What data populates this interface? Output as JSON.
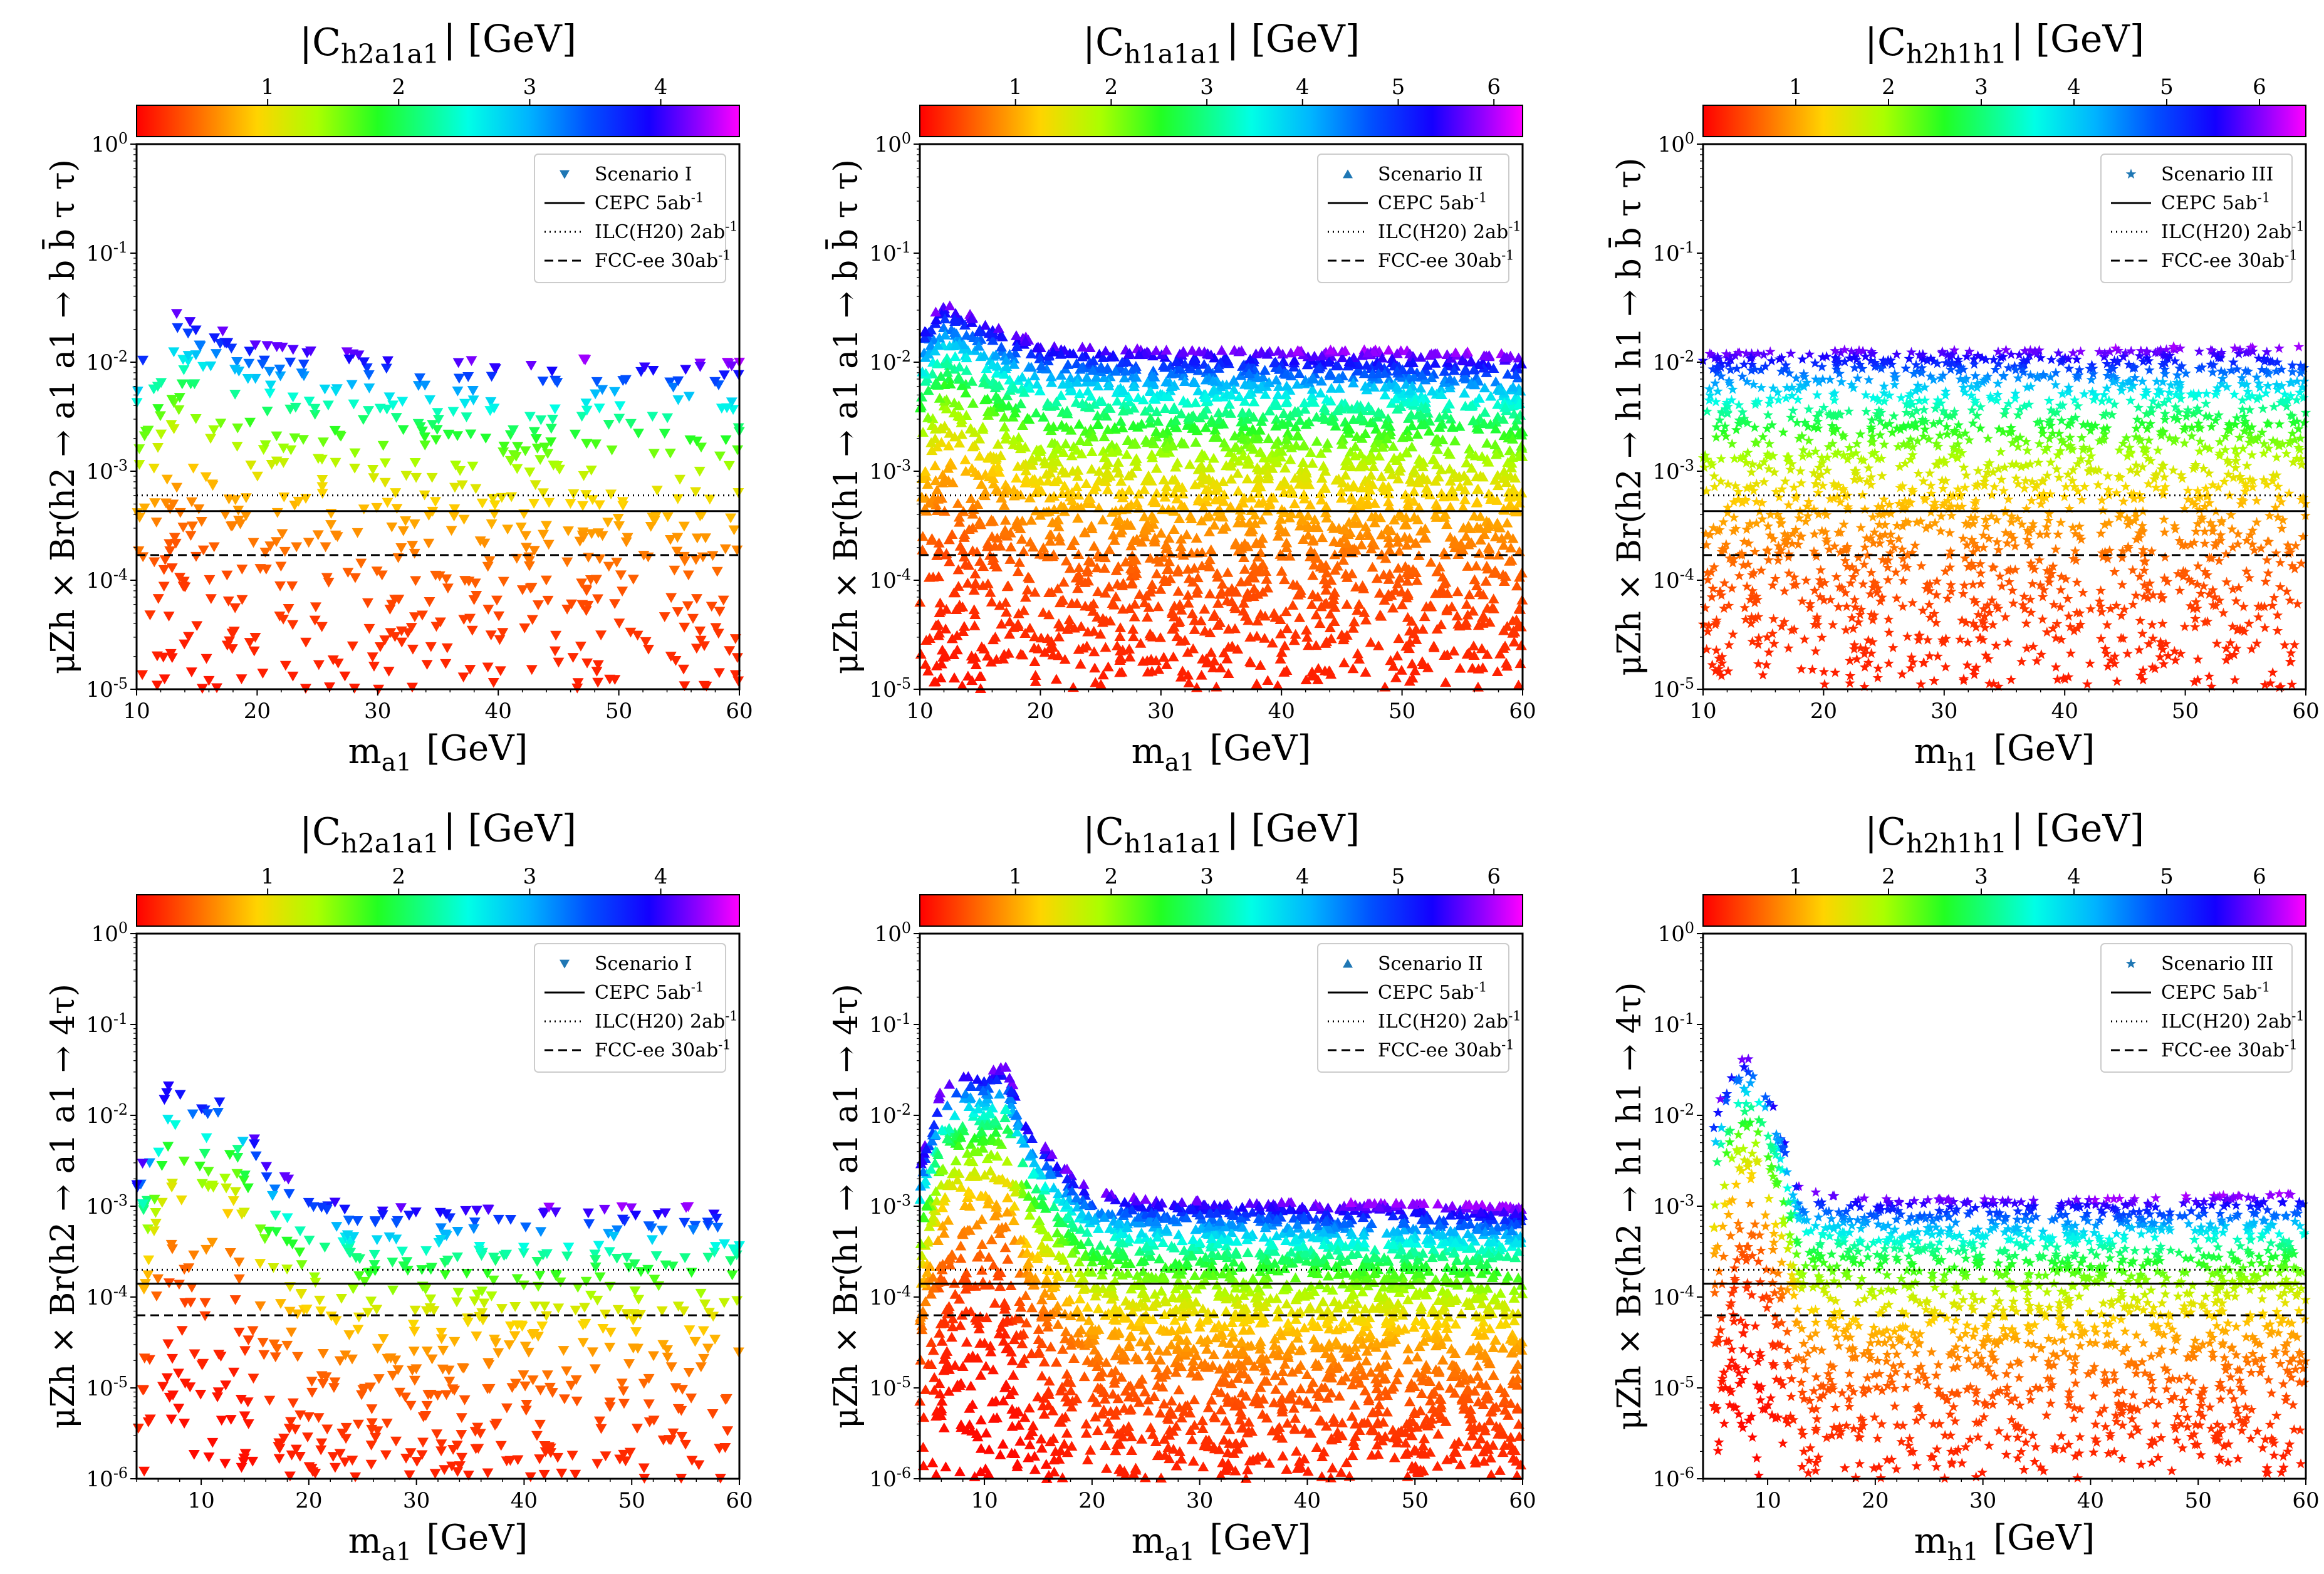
{
  "chart_data": [
    {
      "type": "scatter",
      "title": "",
      "colorbar_label": "|C_h2a1a1| [GeV]",
      "colorbar": {
        "range": [
          0,
          4.6
        ],
        "ticks": [
          1,
          2,
          3,
          4
        ]
      },
      "xlabel": "m_a1 [GeV]",
      "ylabel": "μZh × Br(h2 → a1 a1 → b b̄ τ τ)",
      "xlim": [
        10,
        60
      ],
      "ylim": [
        1e-05,
        1
      ],
      "yscale": "log",
      "xticks": [
        10,
        20,
        30,
        40,
        50,
        60
      ],
      "yticks": [
        {
          "v": 1,
          "l": "10^0"
        },
        {
          "v": 0.1,
          "l": "10^-1"
        },
        {
          "v": 0.01,
          "l": "10^-2"
        },
        {
          "v": 0.001,
          "l": "10^-3"
        },
        {
          "v": 0.0001,
          "l": "10^-4"
        },
        {
          "v": 1e-05,
          "l": "10^-5"
        }
      ],
      "legend": {
        "position": "top-right",
        "series": "Scenario I",
        "marker": "triangle-down",
        "lines": [
          {
            "label": "CEPC 5ab^-1",
            "style": "solid"
          },
          {
            "label": "ILC(H20) 2ab^-1",
            "style": "dotted"
          },
          {
            "label": "FCC-ee 30ab^-1",
            "style": "dashed"
          }
        ]
      },
      "reference_lines": {
        "CEPC": 0.00043,
        "ILC": 0.0006,
        "FCC": 0.00017
      },
      "points": {
        "count": 650,
        "x_range": [
          10,
          60
        ],
        "upper_envelope": [
          [
            10,
            0.012
          ],
          [
            13,
            0.03
          ],
          [
            20,
            0.015
          ],
          [
            30,
            0.012
          ],
          [
            40,
            0.01
          ],
          [
            50,
            0.011
          ],
          [
            60,
            0.01
          ]
        ],
        "lower_bound": 1e-05,
        "color_rule": "|C| ≈ sqrt(Br / upper_envelope) × 4.5"
      }
    },
    {
      "type": "scatter",
      "title": "",
      "colorbar_label": "|C_h1a1a1| [GeV]",
      "colorbar": {
        "range": [
          0,
          6.3
        ],
        "ticks": [
          1,
          2,
          3,
          4,
          5,
          6
        ]
      },
      "xlabel": "m_a1 [GeV]",
      "ylabel": "μZh × Br(h1 → a1 a1 → b b̄ τ τ)",
      "xlim": [
        10,
        60
      ],
      "ylim": [
        1e-05,
        1
      ],
      "yscale": "log",
      "xticks": [
        10,
        20,
        30,
        40,
        50,
        60
      ],
      "yticks": [
        {
          "v": 1,
          "l": "10^0"
        },
        {
          "v": 0.1,
          "l": "10^-1"
        },
        {
          "v": 0.01,
          "l": "10^-2"
        },
        {
          "v": 0.001,
          "l": "10^-3"
        },
        {
          "v": 0.0001,
          "l": "10^-4"
        },
        {
          "v": 1e-05,
          "l": "10^-5"
        }
      ],
      "legend": {
        "position": "top-right",
        "series": "Scenario II",
        "marker": "triangle-up",
        "lines": [
          {
            "label": "CEPC 5ab^-1",
            "style": "solid"
          },
          {
            "label": "ILC(H20) 2ab^-1",
            "style": "dotted"
          },
          {
            "label": "FCC-ee 30ab^-1",
            "style": "dashed"
          }
        ]
      },
      "reference_lines": {
        "CEPC": 0.00043,
        "ILC": 0.0006,
        "FCC": 0.00017
      },
      "points": {
        "count": 2600,
        "x_range": [
          10,
          60
        ],
        "upper_envelope": [
          [
            10,
            0.02
          ],
          [
            12,
            0.035
          ],
          [
            20,
            0.015
          ],
          [
            30,
            0.013
          ],
          [
            40,
            0.013
          ],
          [
            50,
            0.013
          ],
          [
            60,
            0.012
          ]
        ],
        "lower_bound": 1e-05,
        "color_rule": "|C| ≈ sqrt(Br / upper_envelope) × 6.0"
      }
    },
    {
      "type": "scatter",
      "title": "",
      "colorbar_label": "|C_h2h1h1| [GeV]",
      "colorbar": {
        "range": [
          0,
          6.5
        ],
        "ticks": [
          1,
          2,
          3,
          4,
          5,
          6
        ]
      },
      "xlabel": "m_h1 [GeV]",
      "ylabel": "μZh × Br(h2 → h1 h1 → b b̄ τ τ)",
      "xlim": [
        10,
        60
      ],
      "ylim": [
        1e-05,
        1
      ],
      "yscale": "log",
      "xticks": [
        10,
        20,
        30,
        40,
        50,
        60
      ],
      "yticks": [
        {
          "v": 1,
          "l": "10^0"
        },
        {
          "v": 0.1,
          "l": "10^-1"
        },
        {
          "v": 0.01,
          "l": "10^-2"
        },
        {
          "v": 0.001,
          "l": "10^-3"
        },
        {
          "v": 0.0001,
          "l": "10^-4"
        },
        {
          "v": 1e-05,
          "l": "10^-5"
        }
      ],
      "legend": {
        "position": "top-right",
        "series": "Scenario III",
        "marker": "star",
        "lines": [
          {
            "label": "CEPC 5ab^-1",
            "style": "solid"
          },
          {
            "label": "ILC(H20) 2ab^-1",
            "style": "dotted"
          },
          {
            "label": "FCC-ee 30ab^-1",
            "style": "dashed"
          }
        ]
      },
      "reference_lines": {
        "CEPC": 0.00043,
        "ILC": 0.0006,
        "FCC": 0.00017
      },
      "points": {
        "count": 1900,
        "x_range": [
          10,
          60
        ],
        "upper_envelope": [
          [
            10,
            0.012
          ],
          [
            20,
            0.013
          ],
          [
            30,
            0.013
          ],
          [
            40,
            0.013
          ],
          [
            50,
            0.014
          ],
          [
            60,
            0.014
          ]
        ],
        "lower_bound": 1e-05,
        "color_rule": "|C| ≈ sqrt(Br / upper_envelope) × 6.3"
      }
    },
    {
      "type": "scatter",
      "title": "",
      "colorbar_label": "|C_h2a1a1| [GeV]",
      "colorbar": {
        "range": [
          0,
          4.6
        ],
        "ticks": [
          1,
          2,
          3,
          4
        ]
      },
      "xlabel": "m_a1 [GeV]",
      "ylabel": "μZh × Br(h2 → a1 a1 → 4τ)",
      "xlim": [
        4,
        60
      ],
      "ylim": [
        1e-06,
        1
      ],
      "yscale": "log",
      "xticks": [
        10,
        20,
        30,
        40,
        50,
        60
      ],
      "yticks": [
        {
          "v": 1,
          "l": "10^0"
        },
        {
          "v": 0.1,
          "l": "10^-1"
        },
        {
          "v": 0.01,
          "l": "10^-2"
        },
        {
          "v": 0.001,
          "l": "10^-3"
        },
        {
          "v": 0.0001,
          "l": "10^-4"
        },
        {
          "v": 1e-05,
          "l": "10^-5"
        },
        {
          "v": 1e-06,
          "l": "10^-6"
        }
      ],
      "legend": {
        "position": "top-right",
        "series": "Scenario I",
        "marker": "triangle-down",
        "lines": [
          {
            "label": "CEPC 5ab^-1",
            "style": "solid"
          },
          {
            "label": "ILC(H20) 2ab^-1",
            "style": "dotted"
          },
          {
            "label": "FCC-ee 30ab^-1",
            "style": "dashed"
          }
        ]
      },
      "reference_lines": {
        "CEPC": 0.00014,
        "ILC": 0.0002,
        "FCC": 6.3e-05
      },
      "points": {
        "count": 650,
        "x_range": [
          4,
          60
        ],
        "upper_envelope": [
          [
            4,
            0.002
          ],
          [
            7,
            0.025
          ],
          [
            10,
            0.015
          ],
          [
            13,
            0.02
          ],
          [
            16,
            0.003
          ],
          [
            20,
            0.0015
          ],
          [
            25,
            0.001
          ],
          [
            40,
            0.001
          ],
          [
            50,
            0.001
          ],
          [
            60,
            0.001
          ]
        ],
        "lower_bound": 1e-06,
        "color_rule": "|C| ≈ sqrt(Br / upper_envelope) × 4.5"
      }
    },
    {
      "type": "scatter",
      "title": "",
      "colorbar_label": "|C_h1a1a1| [GeV]",
      "colorbar": {
        "range": [
          0,
          6.3
        ],
        "ticks": [
          1,
          2,
          3,
          4,
          5,
          6
        ]
      },
      "xlabel": "m_a1 [GeV]",
      "ylabel": "μZh × Br(h1 → a1 a1 → 4τ)",
      "xlim": [
        4,
        60
      ],
      "ylim": [
        1e-06,
        1
      ],
      "yscale": "log",
      "xticks": [
        10,
        20,
        30,
        40,
        50,
        60
      ],
      "yticks": [
        {
          "v": 1,
          "l": "10^0"
        },
        {
          "v": 0.1,
          "l": "10^-1"
        },
        {
          "v": 0.01,
          "l": "10^-2"
        },
        {
          "v": 0.001,
          "l": "10^-3"
        },
        {
          "v": 0.0001,
          "l": "10^-4"
        },
        {
          "v": 1e-05,
          "l": "10^-5"
        },
        {
          "v": 1e-06,
          "l": "10^-6"
        }
      ],
      "legend": {
        "position": "top-right",
        "series": "Scenario II",
        "marker": "triangle-up",
        "lines": [
          {
            "label": "CEPC 5ab^-1",
            "style": "solid"
          },
          {
            "label": "ILC(H20) 2ab^-1",
            "style": "dotted"
          },
          {
            "label": "FCC-ee 30ab^-1",
            "style": "dashed"
          }
        ]
      },
      "reference_lines": {
        "CEPC": 0.00014,
        "ILC": 0.0002,
        "FCC": 6.3e-05
      },
      "points": {
        "count": 2600,
        "x_range": [
          4,
          60
        ],
        "upper_envelope": [
          [
            4,
            0.003
          ],
          [
            6,
            0.02
          ],
          [
            8,
            0.03
          ],
          [
            10,
            0.03
          ],
          [
            12,
            0.035
          ],
          [
            14,
            0.008
          ],
          [
            17,
            0.003
          ],
          [
            20,
            0.0015
          ],
          [
            25,
            0.0012
          ],
          [
            40,
            0.0011
          ],
          [
            50,
            0.0011
          ],
          [
            60,
            0.001
          ]
        ],
        "lower_bound": 1e-06,
        "color_rule": "|C| ≈ sqrt(Br / upper_envelope) × 6.0"
      }
    },
    {
      "type": "scatter",
      "title": "",
      "colorbar_label": "|C_h2h1h1| [GeV]",
      "colorbar": {
        "range": [
          0,
          6.5
        ],
        "ticks": [
          1,
          2,
          3,
          4,
          5,
          6
        ]
      },
      "xlabel": "m_h1 [GeV]",
      "ylabel": "μZh × Br(h2 → h1 h1 → 4τ)",
      "xlim": [
        4,
        60
      ],
      "ylim": [
        1e-06,
        1
      ],
      "yscale": "log",
      "xticks": [
        10,
        20,
        30,
        40,
        50,
        60
      ],
      "yticks": [
        {
          "v": 1,
          "l": "10^0"
        },
        {
          "v": 0.1,
          "l": "10^-1"
        },
        {
          "v": 0.01,
          "l": "10^-2"
        },
        {
          "v": 0.001,
          "l": "10^-3"
        },
        {
          "v": 0.0001,
          "l": "10^-4"
        },
        {
          "v": 1e-05,
          "l": "10^-5"
        },
        {
          "v": 1e-06,
          "l": "10^-6"
        }
      ],
      "legend": {
        "position": "top-right",
        "series": "Scenario III",
        "marker": "star",
        "lines": [
          {
            "label": "CEPC 5ab^-1",
            "style": "solid"
          },
          {
            "label": "ILC(H20) 2ab^-1",
            "style": "dotted"
          },
          {
            "label": "FCC-ee 30ab^-1",
            "style": "dashed"
          }
        ]
      },
      "reference_lines": {
        "CEPC": 0.00014,
        "ILC": 0.0002,
        "FCC": 6.3e-05
      },
      "points": {
        "count": 1800,
        "x_range": [
          5,
          60
        ],
        "upper_envelope": [
          [
            5,
            0.01
          ],
          [
            7,
            0.04
          ],
          [
            9,
            0.045
          ],
          [
            11,
            0.01
          ],
          [
            13,
            0.0015
          ],
          [
            20,
            0.0012
          ],
          [
            30,
            0.0012
          ],
          [
            40,
            0.0012
          ],
          [
            50,
            0.0013
          ],
          [
            60,
            0.0014
          ]
        ],
        "lower_bound": 1e-06,
        "color_rule": "|C| ≈ sqrt(Br / upper_envelope) × 6.3"
      }
    }
  ]
}
